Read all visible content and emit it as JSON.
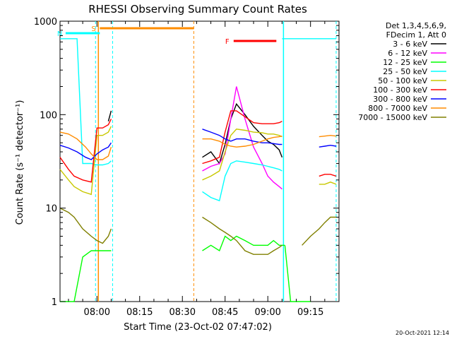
{
  "chart_data": {
    "type": "line",
    "title": "RHESSI Observing Summary Count Rates",
    "xlabel": "Start Time (23-Oct-02 07:47:02)",
    "ylabel": "Count Rate (s⁻¹ detector⁻¹)",
    "y_scale": "log",
    "ylim": [
      1,
      1000
    ],
    "xlim": [
      "07:47:02",
      "09:25:00"
    ],
    "x_ticks": [
      "08:00",
      "08:15",
      "08:30",
      "08:45",
      "09:00",
      "09:15"
    ],
    "y_ticks": [
      "1",
      "10",
      "100",
      "1000"
    ],
    "grid": false,
    "legend_position": "right",
    "legend_header": [
      "Det 1,3,4,5,6,9,",
      "FDecim 1, Att 0"
    ],
    "footer_date": "20-Oct-2021 12:14",
    "flags": [
      {
        "label": "S",
        "color": "#ff8c00"
      },
      {
        "label": "N",
        "color": "#00ffff"
      },
      {
        "label": "F",
        "color": "#ff0000"
      }
    ],
    "series": [
      {
        "name": "3 - 6 keV",
        "color": "#000000",
        "segments": [
          {
            "x": [
              "07:47:02",
              "07:52",
              "07:56",
              "08:00",
              "08:02",
              "08:04",
              "08:05"
            ],
            "y": [
              null,
              null,
              null,
              null,
              null,
              85,
              110
            ]
          },
          {
            "x": [
              "08:37",
              "08:40",
              "08:43",
              "08:45",
              "08:47",
              "08:49",
              "08:52",
              "08:55",
              "08:58",
              "09:00",
              "09:02",
              "09:04",
              "09:05"
            ],
            "y": [
              35,
              40,
              30,
              48,
              90,
              130,
              100,
              75,
              60,
              52,
              48,
              42,
              35
            ]
          },
          {
            "x": [
              "09:06",
              "09:10",
              "09:15",
              "09:20",
              "09:24"
            ],
            "y": [
              null,
              null,
              null,
              null,
              null
            ]
          }
        ]
      },
      {
        "name": "6 - 12 keV",
        "color": "#ff00ff",
        "segments": [
          {
            "x": [
              "08:37",
              "08:40",
              "08:43",
              "08:45",
              "08:47",
              "08:49",
              "08:52",
              "08:55",
              "08:58",
              "09:00",
              "09:02",
              "09:04",
              "09:05"
            ],
            "y": [
              25,
              28,
              30,
              38,
              90,
              200,
              90,
              45,
              30,
              22,
              19,
              17,
              16
            ]
          }
        ]
      },
      {
        "name": "12 - 25 keV",
        "color": "#00ff00",
        "segments": [
          {
            "x": [
              "07:47:02",
              "07:50",
              "07:52",
              "07:55",
              "07:58",
              "08:00",
              "08:03",
              "08:05"
            ],
            "y": [
              1,
              1,
              1,
              3,
              3.5,
              3.5,
              3.5,
              3.5
            ]
          },
          {
            "x": [
              "08:37",
              "08:40",
              "08:43",
              "08:45",
              "08:47",
              "08:49",
              "08:52",
              "08:55",
              "08:58",
              "09:00",
              "09:02",
              "09:04",
              "09:06"
            ],
            "y": [
              3.5,
              4,
              3.5,
              5,
              4.5,
              5,
              4.5,
              4,
              4,
              4,
              4.5,
              4,
              4
            ]
          },
          {
            "x": [
              "09:06",
              "09:08",
              "09:10",
              "09:12",
              "09:15"
            ],
            "y": [
              4,
              1,
              1,
              1,
              1
            ]
          }
        ]
      },
      {
        "name": "25 - 50 keV",
        "color": "#00ffff",
        "segments": [
          {
            "x": [
              "07:47:02",
              "07:50",
              "07:52",
              "07:53",
              "07:55",
              "07:58",
              "08:00",
              "08:02",
              "08:04",
              "08:05"
            ],
            "y": [
              650,
              650,
              650,
              650,
              30,
              30,
              29,
              29,
              30,
              32
            ]
          },
          {
            "x": [
              "08:37",
              "08:40",
              "08:43",
              "08:45",
              "08:47",
              "08:49",
              "08:52",
              "08:55",
              "08:58",
              "09:00",
              "09:02",
              "09:04",
              "09:05"
            ],
            "y": [
              15,
              13,
              12,
              22,
              30,
              32,
              31,
              30,
              29,
              28,
              27,
              26,
              25
            ]
          },
          {
            "x": [
              "09:05",
              "09:10",
              "09:15",
              "09:18",
              "09:21",
              "09:24"
            ],
            "y": [
              650,
              650,
              650,
              650,
              650,
              650
            ]
          }
        ]
      },
      {
        "name": "50 - 100 keV",
        "color": "#c8c800",
        "segments": [
          {
            "x": [
              "07:47:02",
              "07:50",
              "07:52",
              "07:55",
              "07:58",
              "08:00",
              "08:02",
              "08:04",
              "08:05"
            ],
            "y": [
              26,
              20,
              17,
              15,
              14,
              60,
              60,
              65,
              75
            ]
          },
          {
            "x": [
              "08:37",
              "08:40",
              "08:43",
              "08:45",
              "08:47",
              "08:49",
              "08:52",
              "08:55",
              "08:58",
              "09:00",
              "09:02",
              "09:04",
              "09:05"
            ],
            "y": [
              20,
              22,
              25,
              40,
              60,
              70,
              68,
              65,
              64,
              62,
              62,
              60,
              58
            ]
          },
          {
            "x": [
              "09:18",
              "09:20",
              "09:22",
              "09:24"
            ],
            "y": [
              18,
              18,
              19,
              18
            ]
          }
        ]
      },
      {
        "name": "100 - 300 keV",
        "color": "#ff0000",
        "segments": [
          {
            "x": [
              "07:47:02",
              "07:50",
              "07:52",
              "07:55",
              "07:58",
              "08:00",
              "08:02",
              "08:04",
              "08:05"
            ],
            "y": [
              35,
              26,
              22,
              20,
              19,
              72,
              72,
              78,
              90
            ]
          },
          {
            "x": [
              "08:37",
              "08:40",
              "08:43",
              "08:45",
              "08:47",
              "08:49",
              "08:52",
              "08:55",
              "08:58",
              "09:00",
              "09:02",
              "09:04",
              "09:05"
            ],
            "y": [
              30,
              32,
              35,
              65,
              110,
              110,
              95,
              82,
              80,
              80,
              80,
              82,
              85
            ]
          },
          {
            "x": [
              "09:18",
              "09:20",
              "09:22",
              "09:24"
            ],
            "y": [
              22,
              23,
              23,
              22
            ]
          }
        ]
      },
      {
        "name": "300 - 800 keV",
        "color": "#0000ff",
        "segments": [
          {
            "x": [
              "07:47:02",
              "07:50",
              "07:53",
              "07:56",
              "07:58",
              "08:00",
              "08:02",
              "08:04",
              "08:05"
            ],
            "y": [
              47,
              44,
              40,
              35,
              33,
              38,
              42,
              45,
              50
            ]
          },
          {
            "x": [
              "08:37",
              "08:40",
              "08:43",
              "08:45",
              "08:47",
              "08:49",
              "08:52",
              "08:55",
              "08:58",
              "09:00",
              "09:02",
              "09:04",
              "09:05"
            ],
            "y": [
              70,
              65,
              60,
              55,
              52,
              55,
              55,
              52,
              50,
              50,
              49,
              48,
              48
            ]
          },
          {
            "x": [
              "09:18",
              "09:20",
              "09:22",
              "09:24"
            ],
            "y": [
              45,
              46,
              47,
              46
            ]
          }
        ]
      },
      {
        "name": "800 - 7000 keV",
        "color": "#ff8c00",
        "segments": [
          {
            "x": [
              "07:47:02",
              "07:50",
              "07:53",
              "07:56",
              "07:58",
              "08:00",
              "08:02",
              "08:04",
              "08:05"
            ],
            "y": [
              65,
              62,
              55,
              45,
              38,
              33,
              33,
              36,
              45
            ]
          },
          {
            "x": [
              "08:37",
              "08:40",
              "08:43",
              "08:45",
              "08:47",
              "08:49",
              "08:52",
              "08:55",
              "08:58",
              "09:00",
              "09:02",
              "09:04",
              "09:05"
            ],
            "y": [
              55,
              55,
              52,
              48,
              46,
              45,
              46,
              48,
              52,
              55,
              57,
              58,
              59
            ]
          },
          {
            "x": [
              "09:18",
              "09:20",
              "09:22",
              "09:24"
            ],
            "y": [
              58,
              59,
              60,
              59
            ]
          }
        ]
      },
      {
        "name": "7000 - 15000 keV",
        "color": "#808000",
        "segments": [
          {
            "x": [
              "07:47:02",
              "07:50",
              "07:52",
              "07:55",
              "07:58",
              "08:00",
              "08:02",
              "08:04",
              "08:05"
            ],
            "y": [
              10,
              9,
              8,
              6,
              5,
              4.5,
              4.2,
              5,
              6
            ]
          },
          {
            "x": [
              "08:37",
              "08:40",
              "08:43",
              "08:45",
              "08:47",
              "08:49",
              "08:52",
              "08:55",
              "08:58",
              "09:00",
              "09:02",
              "09:04",
              "09:05"
            ],
            "y": [
              8,
              7,
              6,
              5.5,
              5,
              4.5,
              3.5,
              3.2,
              3.2,
              3.2,
              3.5,
              3.8,
              4
            ]
          },
          {
            "x": [
              "09:12",
              "09:15",
              "09:18",
              "09:20",
              "09:22",
              "09:24"
            ],
            "y": [
              4,
              5,
              6,
              7,
              8,
              8
            ]
          }
        ]
      }
    ]
  }
}
